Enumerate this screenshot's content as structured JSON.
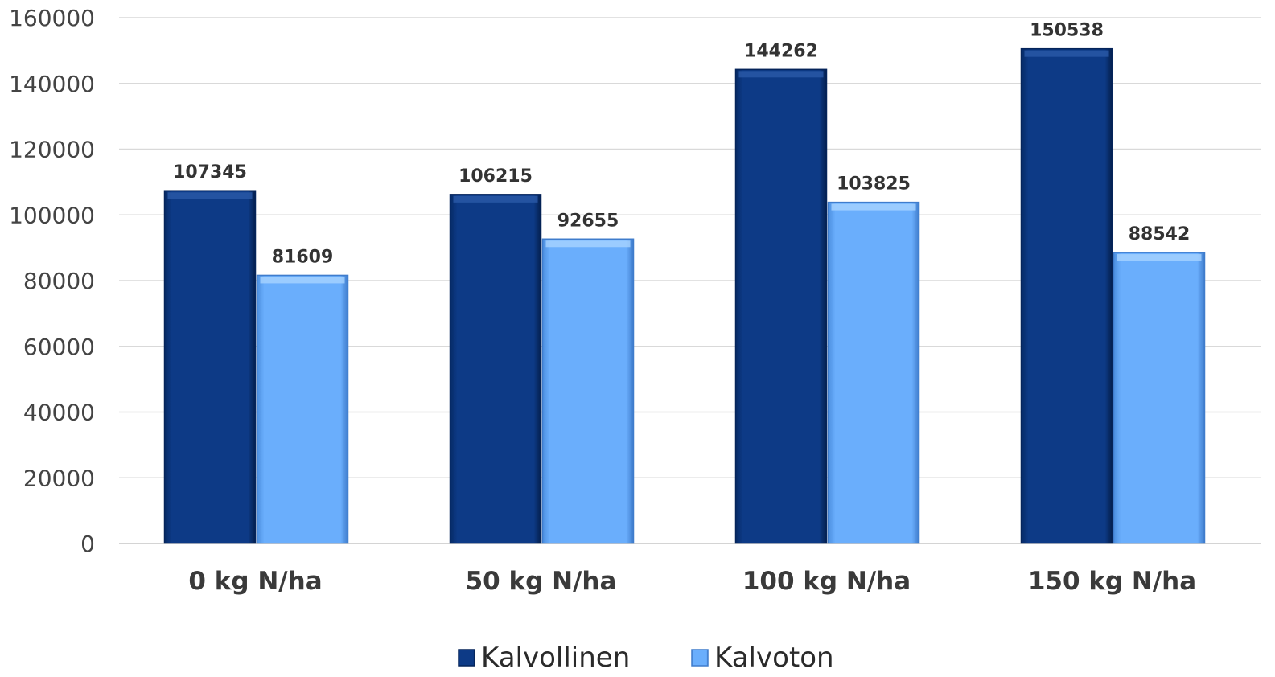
{
  "chart_data": {
    "type": "bar",
    "categories": [
      "0 kg N/ha",
      "50 kg N/ha",
      "100 kg N/ha",
      "150 kg N/ha"
    ],
    "series": [
      {
        "name": "Kalvollinen",
        "values": [
          107345,
          106215,
          144262,
          150538
        ],
        "color": "#0d3a86"
      },
      {
        "name": "Kalvoton",
        "values": [
          81609,
          92655,
          103825,
          88542
        ],
        "color": "#6aaefc"
      }
    ],
    "ylim": [
      0,
      160000
    ],
    "yticks": [
      0,
      20000,
      40000,
      60000,
      80000,
      100000,
      120000,
      140000,
      160000
    ],
    "data_labels": true,
    "grid": true,
    "legend": "bottom-center",
    "colors": {
      "gridline": "#d9d9d9",
      "axis_text": "#444444"
    }
  }
}
